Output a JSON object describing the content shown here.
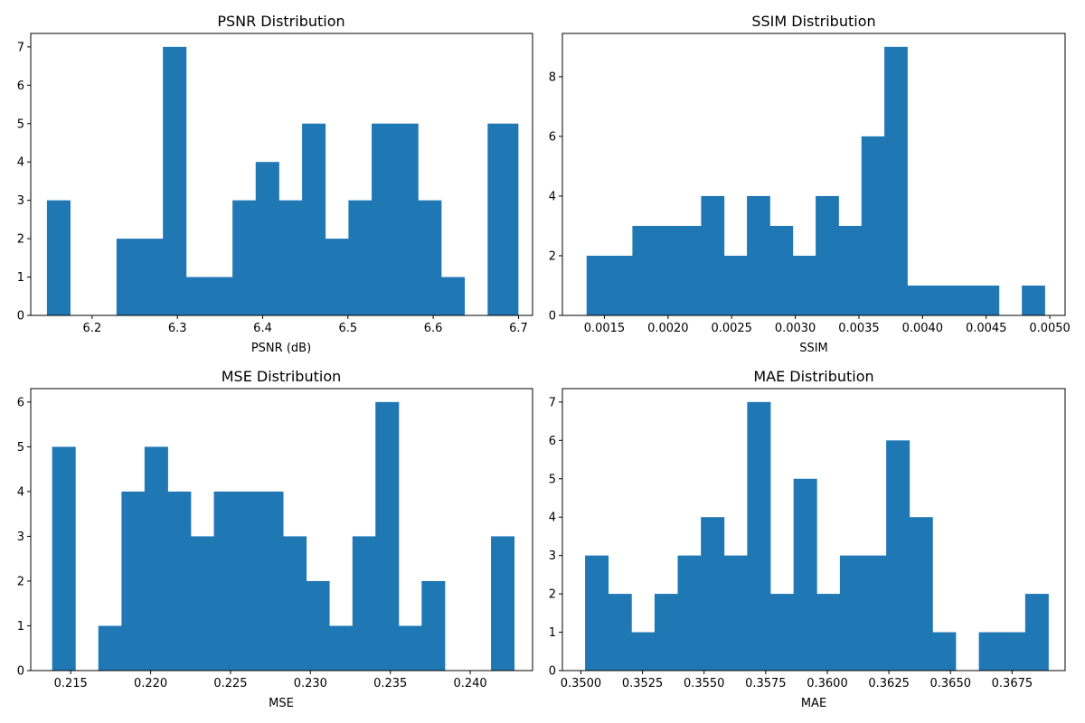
{
  "figure": {
    "background": "#ffffff",
    "bar_color": "#1f77b4"
  },
  "chart_data": [
    {
      "type": "bar",
      "title": "PSNR Distribution",
      "xlabel": "PSNR (dB)",
      "ylabel": "",
      "xlim": [
        6.128,
        6.7165
      ],
      "ylim": [
        0,
        7.35
      ],
      "bin_edges": [
        6.147,
        6.1742,
        6.2014,
        6.2286,
        6.2558,
        6.283,
        6.3102,
        6.3374,
        6.3646,
        6.3918,
        6.419,
        6.4462,
        6.4734,
        6.5006,
        6.5278,
        6.555,
        6.5822,
        6.6094,
        6.6366,
        6.6638,
        6.6995
      ],
      "values": [
        3,
        0,
        0,
        2,
        2,
        7,
        1,
        1,
        3,
        4,
        3,
        5,
        2,
        3,
        5,
        5,
        3,
        1,
        0,
        5
      ],
      "xticks": [
        6.2,
        6.3,
        6.4,
        6.5,
        6.6,
        6.7
      ],
      "xtick_labels": [
        "6.2",
        "6.3",
        "6.4",
        "6.5",
        "6.6",
        "6.7"
      ],
      "yticks": [
        0,
        1,
        2,
        3,
        4,
        5,
        6,
        7
      ],
      "ytick_labels": [
        "0",
        "1",
        "2",
        "3",
        "4",
        "5",
        "6",
        "7"
      ]
    },
    {
      "type": "bar",
      "title": "SSIM Distribution",
      "xlabel": "SSIM",
      "ylabel": "",
      "xlim": [
        0.00117,
        0.00512
      ],
      "ylim": [
        0,
        9.45
      ],
      "bin_edges": [
        0.00136,
        0.00154,
        0.00172,
        0.0019,
        0.00208,
        0.00226,
        0.00244,
        0.00262,
        0.0028,
        0.00298,
        0.00316,
        0.00334,
        0.00352,
        0.0037,
        0.00388,
        0.00406,
        0.00424,
        0.00442,
        0.0046,
        0.00478,
        0.00496
      ],
      "values": [
        2,
        2,
        3,
        3,
        3,
        4,
        2,
        4,
        3,
        2,
        4,
        3,
        6,
        9,
        1,
        1,
        1,
        1,
        0,
        1
      ],
      "xticks": [
        0.0015,
        0.002,
        0.0025,
        0.003,
        0.0035,
        0.004,
        0.0045,
        0.005
      ],
      "xtick_labels": [
        "0.0015",
        "0.0020",
        "0.0025",
        "0.0030",
        "0.0035",
        "0.0040",
        "0.0045",
        "0.0050"
      ],
      "yticks": [
        0,
        2,
        4,
        6,
        8
      ],
      "ytick_labels": [
        "0",
        "2",
        "4",
        "6",
        "8"
      ]
    },
    {
      "type": "bar",
      "title": "MSE Distribution",
      "xlabel": "MSE",
      "ylabel": "",
      "xlim": [
        0.2125,
        0.2439
      ],
      "ylim": [
        0,
        6.3
      ],
      "bin_edges": [
        0.21384,
        0.21529,
        0.21673,
        0.21818,
        0.21962,
        0.22107,
        0.22251,
        0.22396,
        0.2254,
        0.22685,
        0.22829,
        0.22974,
        0.23118,
        0.23263,
        0.23407,
        0.23552,
        0.23696,
        0.23841,
        0.23985,
        0.2413,
        0.24275
      ],
      "values": [
        5,
        0,
        1,
        4,
        5,
        4,
        3,
        4,
        4,
        4,
        3,
        2,
        1,
        3,
        6,
        1,
        2,
        0,
        0,
        3
      ],
      "xticks": [
        0.215,
        0.22,
        0.225,
        0.23,
        0.235,
        0.24
      ],
      "xtick_labels": [
        "0.215",
        "0.220",
        "0.225",
        "0.230",
        "0.235",
        "0.240"
      ],
      "yticks": [
        0,
        1,
        2,
        3,
        4,
        5,
        6
      ],
      "ytick_labels": [
        "0",
        "1",
        "2",
        "3",
        "4",
        "5",
        "6"
      ]
    },
    {
      "type": "bar",
      "title": "MAE Distribution",
      "xlabel": "MAE",
      "ylabel": "",
      "xlim": [
        0.34925,
        0.36965
      ],
      "ylim": [
        0,
        7.35
      ],
      "bin_edges": [
        0.35017,
        0.35111,
        0.35205,
        0.35299,
        0.35393,
        0.35487,
        0.35581,
        0.35675,
        0.35769,
        0.35863,
        0.35957,
        0.36051,
        0.36145,
        0.36239,
        0.36333,
        0.36427,
        0.36521,
        0.36615,
        0.36709,
        0.36803,
        0.36897
      ],
      "values": [
        3,
        2,
        1,
        2,
        3,
        4,
        3,
        7,
        2,
        5,
        2,
        3,
        3,
        6,
        4,
        1,
        0,
        1,
        1,
        2
      ],
      "xticks": [
        0.35,
        0.3525,
        0.355,
        0.3575,
        0.36,
        0.3625,
        0.365,
        0.3675
      ],
      "xtick_labels": [
        "0.3500",
        "0.3525",
        "0.3550",
        "0.3575",
        "0.3600",
        "0.3625",
        "0.3650",
        "0.3675"
      ],
      "yticks": [
        0,
        1,
        2,
        3,
        4,
        5,
        6,
        7
      ],
      "ytick_labels": [
        "0",
        "1",
        "2",
        "3",
        "4",
        "5",
        "6",
        "7"
      ]
    }
  ]
}
